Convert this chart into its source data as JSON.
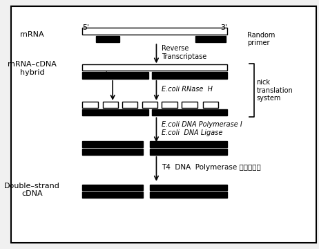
{
  "bg_color": "#f0f0f0",
  "box_color": "white",
  "black": "#000000",
  "labels": {
    "mrna": "mRNA",
    "hybrid": "mRNA–cDNA\nhybrid",
    "nick": "nick",
    "ecoli_rnase": "E.coli RNase  H",
    "reverse": "Reverse\nTranscriptase",
    "ecoli_pol": "E.coli DNA Polymerase I\nE.coli  DNA Ligase",
    "t4": "T4  DNA  Polymerase 平滑末端化",
    "double": "Double–strand\ncDNA",
    "nick_translation": "nick\ntranslation\nsystem",
    "5prime": "5'",
    "3prime": "3'",
    "random_primer": "Random\nprimer"
  }
}
